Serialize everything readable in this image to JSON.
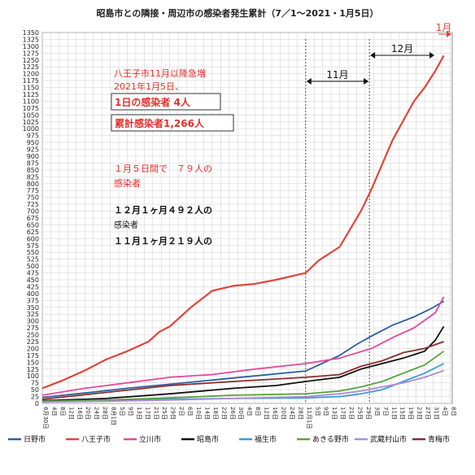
{
  "chart_data": {
    "type": "line",
    "title": "昭島市との隣接・周辺市の感染者発生累計（7／1～2021・1月5日）",
    "xlabel": "",
    "ylabel": "",
    "ylim": [
      0,
      1350
    ],
    "yticks": [
      0,
      25,
      50,
      75,
      100,
      125,
      150,
      175,
      200,
      225,
      250,
      275,
      300,
      325,
      350,
      375,
      400,
      425,
      450,
      475,
      500,
      525,
      550,
      575,
      600,
      625,
      650,
      675,
      700,
      725,
      750,
      775,
      800,
      825,
      850,
      875,
      900,
      925,
      950,
      975,
      1000,
      1025,
      1050,
      1075,
      1100,
      1125,
      1150,
      1175,
      1200,
      1225,
      1250,
      1275,
      1300,
      1325,
      1350
    ],
    "grid": true,
    "legend_position": "bottom",
    "x_labels": [
      "6月30日",
      "4日",
      "8日",
      "12日",
      "16日",
      "20日",
      "24日",
      "28日",
      "8月1日",
      "5日",
      "9日",
      "13日",
      "17日",
      "21日",
      "25日",
      "29日",
      "2日",
      "6日",
      "10日",
      "14日",
      "18日",
      "22日",
      "26日",
      "30日",
      "4日",
      "8日",
      "12日",
      "16日",
      "20日",
      "24日",
      "28日",
      "11月1日",
      "5日",
      "9日",
      "13日",
      "17日",
      "21日",
      "25日",
      "29日",
      "3日",
      "7日",
      "11日",
      "15日",
      "19日",
      "23日",
      "27日",
      "31日",
      "4日",
      "8日"
    ],
    "x_days": [
      0,
      4,
      8,
      12,
      16,
      20,
      24,
      28,
      32,
      36,
      40,
      44,
      48,
      52,
      56,
      60,
      64,
      68,
      72,
      76,
      80,
      84,
      88,
      92,
      96,
      100,
      104,
      108,
      112,
      116,
      120,
      124,
      128,
      132,
      136,
      140,
      144,
      148,
      152,
      156,
      160,
      164,
      168,
      172,
      176,
      180,
      184,
      188,
      192
    ],
    "x_range_days": [
      0,
      193
    ],
    "series": [
      {
        "name": "日野市",
        "color": "#2e5f9e",
        "x": [
          0,
          20,
          40,
          60,
          80,
          100,
          124,
          140,
          148,
          155,
          165,
          175,
          183,
          189
        ],
        "values": [
          22,
          38,
          55,
          70,
          85,
          100,
          118,
          175,
          215,
          245,
          285,
          315,
          345,
          372
        ]
      },
      {
        "name": "八王子市",
        "color": "#e0453b",
        "x": [
          0,
          10,
          20,
          30,
          40,
          50,
          55,
          60,
          70,
          80,
          90,
          100,
          110,
          124,
          130,
          140,
          150,
          155,
          160,
          165,
          170,
          175,
          180,
          185,
          189
        ],
        "values": [
          55,
          85,
          120,
          160,
          190,
          225,
          260,
          280,
          350,
          410,
          428,
          435,
          450,
          475,
          520,
          570,
          700,
          780,
          870,
          960,
          1030,
          1100,
          1150,
          1210,
          1266
        ]
      },
      {
        "name": "立川市",
        "color": "#e6499e",
        "x": [
          0,
          20,
          40,
          60,
          80,
          100,
          124,
          140,
          155,
          165,
          175,
          185,
          189
        ],
        "values": [
          30,
          55,
          75,
          95,
          105,
          125,
          145,
          165,
          200,
          240,
          275,
          330,
          388
        ]
      },
      {
        "name": "昭島市",
        "color": "#111111",
        "x": [
          0,
          30,
          60,
          90,
          110,
          124,
          140,
          150,
          160,
          170,
          180,
          185,
          189
        ],
        "values": [
          10,
          18,
          35,
          55,
          65,
          80,
          95,
          125,
          145,
          165,
          190,
          230,
          280
        ]
      },
      {
        "name": "福生市",
        "color": "#3a9ad9",
        "x": [
          0,
          30,
          60,
          90,
          124,
          140,
          150,
          160,
          170,
          180,
          189
        ],
        "values": [
          5,
          10,
          15,
          18,
          20,
          25,
          35,
          50,
          80,
          110,
          145
        ]
      },
      {
        "name": "あきる野市",
        "color": "#57a33a",
        "x": [
          0,
          30,
          60,
          90,
          124,
          140,
          150,
          160,
          170,
          180,
          189
        ],
        "values": [
          8,
          12,
          20,
          30,
          35,
          45,
          60,
          80,
          110,
          140,
          190
        ]
      },
      {
        "name": "武蔵村山市",
        "color": "#b08ad8",
        "x": [
          0,
          30,
          60,
          90,
          124,
          140,
          150,
          160,
          170,
          180,
          189
        ],
        "values": [
          5,
          8,
          12,
          18,
          25,
          35,
          45,
          60,
          75,
          95,
          120
        ]
      },
      {
        "name": "青梅市",
        "color": "#8b2c2c",
        "x": [
          0,
          30,
          60,
          90,
          124,
          140,
          150,
          160,
          170,
          180,
          189
        ],
        "values": [
          15,
          40,
          65,
          80,
          95,
          105,
          135,
          155,
          185,
          200,
          225
        ]
      }
    ],
    "month_markers": [
      {
        "label": "11月",
        "start_day": 124,
        "end_day": 154
      },
      {
        "label": "12月",
        "start_day": 154,
        "end_day": 185
      },
      {
        "label": "1月",
        "start_day": 185,
        "end_day": 193
      }
    ],
    "annotations": {
      "red_block": [
        "八王子市11月以降急増",
        "2021年1月5日、"
      ],
      "box1": "1日の感染者  4人",
      "box2": "累計感染者1,266人",
      "red2a": "１月５日間で　７９人の",
      "red2b": "感染者",
      "blk1a": "１２月１ヶ月４９２人の",
      "blk1b": "感染者",
      "blk2": "１１月１ヶ月２１９人の"
    }
  }
}
